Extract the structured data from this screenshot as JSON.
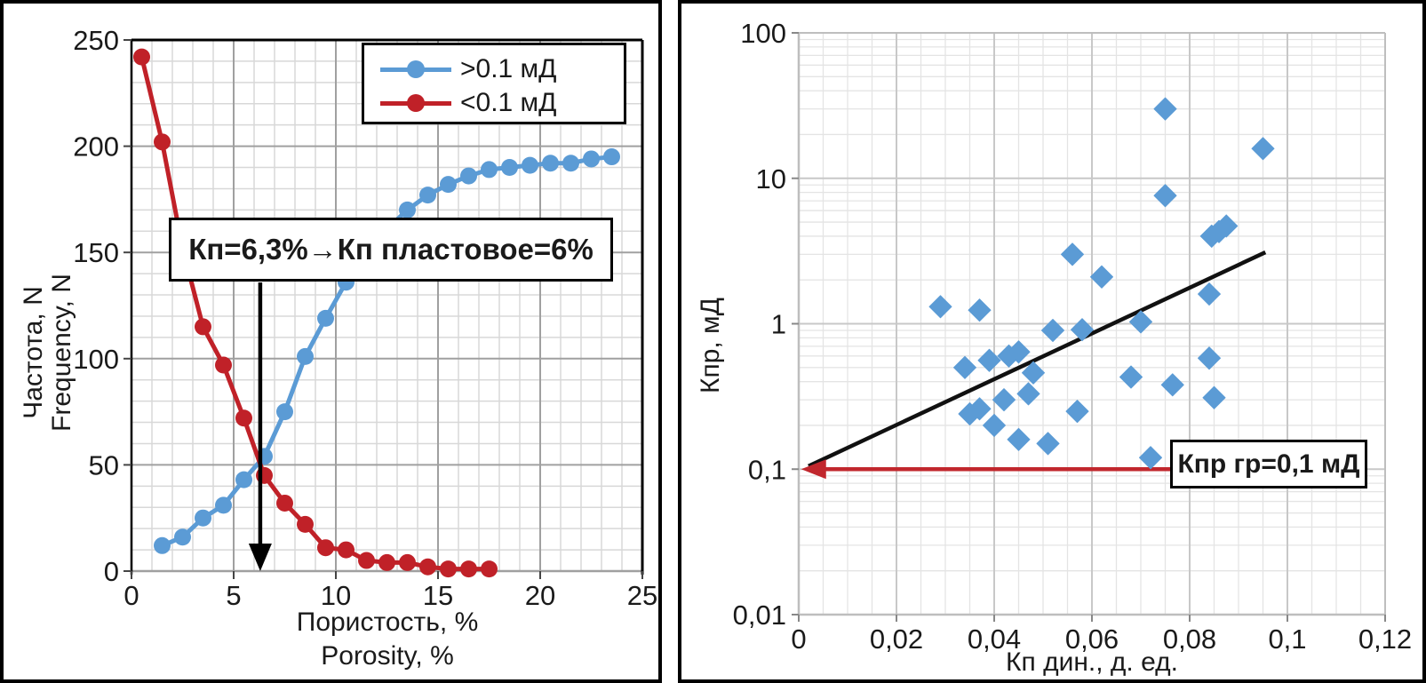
{
  "figure": {
    "description": "Two-panel petrophysics figure: cumulative frequency vs porosity (left) and permeability vs dynamic porosity cross-plot (right)",
    "colors": {
      "series_blue": "#5B9BD5",
      "series_red": "#C02128",
      "cutoff_red": "#C1272D",
      "trend_black": "#111111",
      "grid_minor_left": "#D8D8D8",
      "grid_major_left": "#A0A0A0",
      "grid_minor_right": "#E4E4E4",
      "grid_major_right": "#C8C8C8",
      "frame_right": "#BEBEBE",
      "text": "#1a1a1a"
    }
  },
  "chart_data": [
    {
      "type": "line",
      "title": "",
      "xlabel": "Пористость, % / Porosity, %",
      "ylabel": "Частота, N / Frequency, N",
      "xlabel_lines": [
        "Пористость, %",
        "Porosity, %"
      ],
      "ylabel_lines": [
        "Частота, N",
        "Frequency, N"
      ],
      "xlim": [
        0,
        25
      ],
      "ylim": [
        0,
        250
      ],
      "x_ticks": [
        0,
        5,
        10,
        15,
        20,
        25
      ],
      "y_ticks": [
        0,
        50,
        100,
        150,
        200,
        250
      ],
      "x_minor_step": 1,
      "y_minor_step": 10,
      "grid": true,
      "legend_position": "top-right",
      "series": [
        {
          "name": ">0.1 мД",
          "color": "#5B9BD5",
          "marker": "circle",
          "x": [
            1.5,
            2.5,
            3.5,
            4.5,
            5.5,
            6.5,
            7.5,
            8.5,
            9.5,
            10.5,
            11.5,
            12.5,
            13.5,
            14.5,
            15.5,
            16.5,
            17.5,
            18.5,
            19.5,
            20.5,
            21.5,
            22.5,
            23.5
          ],
          "y": [
            12,
            16,
            25,
            31,
            43,
            54,
            75,
            101,
            119,
            136,
            150,
            161,
            170,
            177,
            182,
            186,
            189,
            190,
            191,
            192,
            192,
            194,
            195
          ]
        },
        {
          "name": "<0.1 мД",
          "color": "#C02128",
          "marker": "circle",
          "x": [
            0.5,
            1.5,
            2.5,
            3.5,
            4.5,
            5.5,
            6.5,
            7.5,
            8.5,
            9.5,
            10.5,
            11.5,
            12.5,
            13.5,
            14.5,
            15.5,
            16.5,
            17.5
          ],
          "y": [
            242,
            202,
            152,
            115,
            97,
            72,
            45,
            32,
            22,
            11,
            10,
            5,
            4,
            4,
            2,
            1,
            1,
            1
          ]
        }
      ],
      "annotation": {
        "text": "Кп=6,3%→Кп пластовое=6%",
        "arrow_x": 6.3
      }
    },
    {
      "type": "scatter",
      "title": "",
      "xlabel": "Кп дин., д. ед.",
      "ylabel": "Кпр, мД",
      "xlim": [
        0,
        0.12
      ],
      "ylim": [
        0.01,
        100
      ],
      "y_scale": "log",
      "x_ticks": [
        0,
        0.02,
        0.04,
        0.06,
        0.08,
        0.1,
        0.12
      ],
      "x_tick_labels": [
        "0",
        "0,02",
        "0,04",
        "0,06",
        "0,08",
        "0,1",
        "0,12"
      ],
      "y_ticks": [
        100,
        10,
        1,
        0.1,
        0.01
      ],
      "y_tick_labels": [
        "100",
        "10",
        "1",
        "0,1",
        "0,01"
      ],
      "x_minor_step": 0.005,
      "grid": true,
      "marker": "diamond",
      "marker_color": "#5B9BD5",
      "points": [
        [
          0.029,
          1.31
        ],
        [
          0.037,
          1.24
        ],
        [
          0.034,
          0.5
        ],
        [
          0.039,
          0.56
        ],
        [
          0.043,
          0.6
        ],
        [
          0.045,
          0.64
        ],
        [
          0.048,
          0.46
        ],
        [
          0.035,
          0.24
        ],
        [
          0.037,
          0.26
        ],
        [
          0.042,
          0.3
        ],
        [
          0.047,
          0.33
        ],
        [
          0.04,
          0.2
        ],
        [
          0.045,
          0.16
        ],
        [
          0.051,
          0.15
        ],
        [
          0.057,
          0.25
        ],
        [
          0.068,
          0.43
        ],
        [
          0.0765,
          0.38
        ],
        [
          0.084,
          0.58
        ],
        [
          0.085,
          0.31
        ],
        [
          0.072,
          0.12
        ],
        [
          0.052,
          0.9
        ],
        [
          0.058,
          0.91
        ],
        [
          0.07,
          1.03
        ],
        [
          0.056,
          3.0
        ],
        [
          0.062,
          2.1
        ],
        [
          0.084,
          1.6
        ],
        [
          0.075,
          30
        ],
        [
          0.095,
          16
        ],
        [
          0.075,
          7.6
        ],
        [
          0.0845,
          4.0
        ],
        [
          0.086,
          4.3
        ],
        [
          0.0875,
          4.7
        ]
      ],
      "trend_line": {
        "x1": 0.002,
        "y1": 0.105,
        "x2": 0.0955,
        "y2": 3.1,
        "color": "#111111"
      },
      "cutoff_arrow": {
        "y": 0.1,
        "x_from": 0.076,
        "x_to": 0.0005,
        "color": "#C1272D",
        "label": "Кпр гр=0,1 мД"
      }
    }
  ]
}
